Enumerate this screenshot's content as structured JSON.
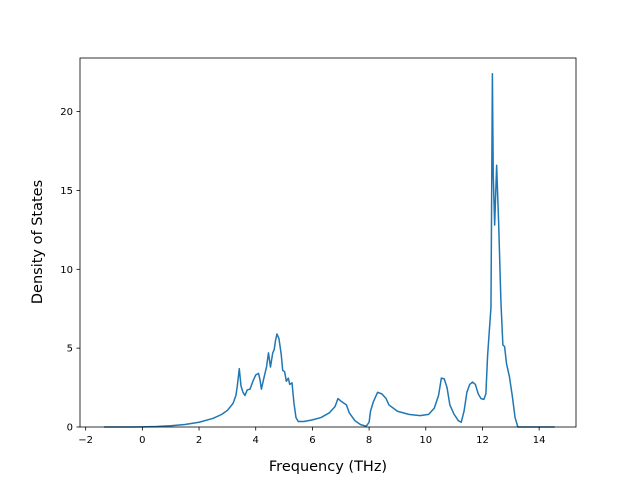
{
  "chart_data": {
    "type": "line",
    "title": "",
    "xlabel": "Frequency (THz)",
    "ylabel": "Density of States",
    "xlim": [
      -2.2,
      15.3
    ],
    "ylim": [
      0,
      23.4
    ],
    "grid": false,
    "x_ticks": [
      -2,
      0,
      2,
      4,
      6,
      8,
      10,
      12,
      14
    ],
    "x_tick_labels": [
      "−2",
      "0",
      "2",
      "4",
      "6",
      "8",
      "10",
      "12",
      "14"
    ],
    "y_ticks": [
      0,
      5,
      10,
      15,
      20
    ],
    "y_tick_labels": [
      "0",
      "5",
      "10",
      "15",
      "20"
    ],
    "series": [
      {
        "color": "#1f77b4",
        "points": [
          [
            -1.35,
            0.0
          ],
          [
            -1.0,
            0.0
          ],
          [
            -0.5,
            0.0
          ],
          [
            0.0,
            0.01
          ],
          [
            0.5,
            0.03
          ],
          [
            1.0,
            0.08
          ],
          [
            1.5,
            0.16
          ],
          [
            2.0,
            0.3
          ],
          [
            2.5,
            0.55
          ],
          [
            2.8,
            0.8
          ],
          [
            3.0,
            1.05
          ],
          [
            3.2,
            1.5
          ],
          [
            3.3,
            2.0
          ],
          [
            3.35,
            2.6
          ],
          [
            3.42,
            3.7
          ],
          [
            3.48,
            2.6
          ],
          [
            3.55,
            2.2
          ],
          [
            3.62,
            2.0
          ],
          [
            3.7,
            2.35
          ],
          [
            3.8,
            2.4
          ],
          [
            3.9,
            2.9
          ],
          [
            4.0,
            3.3
          ],
          [
            4.1,
            3.4
          ],
          [
            4.15,
            3.0
          ],
          [
            4.2,
            2.4
          ],
          [
            4.3,
            3.2
          ],
          [
            4.38,
            3.8
          ],
          [
            4.45,
            4.7
          ],
          [
            4.52,
            3.8
          ],
          [
            4.6,
            4.7
          ],
          [
            4.65,
            4.9
          ],
          [
            4.7,
            5.5
          ],
          [
            4.75,
            5.9
          ],
          [
            4.82,
            5.6
          ],
          [
            4.9,
            4.6
          ],
          [
            4.95,
            3.6
          ],
          [
            5.02,
            3.5
          ],
          [
            5.08,
            2.9
          ],
          [
            5.15,
            3.1
          ],
          [
            5.2,
            2.7
          ],
          [
            5.28,
            2.8
          ],
          [
            5.35,
            1.5
          ],
          [
            5.42,
            0.6
          ],
          [
            5.5,
            0.35
          ],
          [
            5.7,
            0.35
          ],
          [
            6.0,
            0.45
          ],
          [
            6.3,
            0.6
          ],
          [
            6.6,
            0.9
          ],
          [
            6.8,
            1.3
          ],
          [
            6.9,
            1.8
          ],
          [
            7.0,
            1.65
          ],
          [
            7.2,
            1.4
          ],
          [
            7.3,
            0.9
          ],
          [
            7.5,
            0.4
          ],
          [
            7.7,
            0.15
          ],
          [
            7.9,
            0.05
          ],
          [
            8.0,
            0.3
          ],
          [
            8.05,
            1.0
          ],
          [
            8.15,
            1.6
          ],
          [
            8.3,
            2.2
          ],
          [
            8.45,
            2.1
          ],
          [
            8.6,
            1.8
          ],
          [
            8.7,
            1.4
          ],
          [
            9.0,
            1.0
          ],
          [
            9.4,
            0.8
          ],
          [
            9.8,
            0.72
          ],
          [
            10.1,
            0.8
          ],
          [
            10.3,
            1.2
          ],
          [
            10.45,
            2.0
          ],
          [
            10.55,
            3.1
          ],
          [
            10.65,
            3.05
          ],
          [
            10.75,
            2.5
          ],
          [
            10.85,
            1.4
          ],
          [
            11.0,
            0.8
          ],
          [
            11.15,
            0.4
          ],
          [
            11.25,
            0.3
          ],
          [
            11.35,
            1.0
          ],
          [
            11.45,
            2.2
          ],
          [
            11.55,
            2.7
          ],
          [
            11.65,
            2.85
          ],
          [
            11.75,
            2.7
          ],
          [
            11.85,
            2.1
          ],
          [
            11.95,
            1.8
          ],
          [
            12.05,
            1.75
          ],
          [
            12.12,
            2.1
          ],
          [
            12.18,
            4.5
          ],
          [
            12.3,
            7.6
          ],
          [
            12.35,
            22.4
          ],
          [
            12.38,
            16.0
          ],
          [
            12.43,
            12.8
          ],
          [
            12.5,
            16.6
          ],
          [
            12.57,
            13.0
          ],
          [
            12.65,
            8.0
          ],
          [
            12.72,
            5.2
          ],
          [
            12.78,
            5.1
          ],
          [
            12.85,
            4.0
          ],
          [
            12.95,
            3.2
          ],
          [
            13.05,
            2.0
          ],
          [
            13.15,
            0.6
          ],
          [
            13.25,
            0.0
          ],
          [
            14.0,
            0.0
          ],
          [
            14.55,
            0.0
          ]
        ]
      }
    ]
  }
}
